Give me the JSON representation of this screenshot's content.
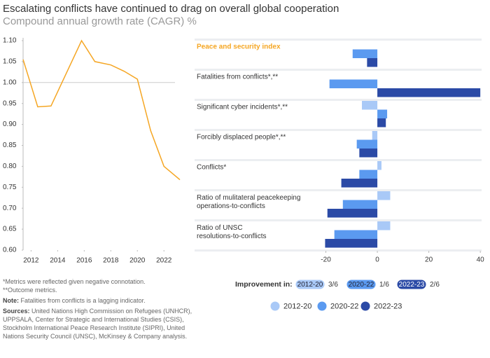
{
  "title": "Escalating conflicts have continued to drag on overall global cooperation",
  "subtitle": "Compound annual growth rate (CAGR) %",
  "chart_data": [
    {
      "type": "line",
      "color": "#f5a623",
      "x": [
        2011.4,
        2012.5,
        2013.5,
        2015.8,
        2016.8,
        2018,
        2019,
        2020,
        2021,
        2022,
        2023.2
      ],
      "values": [
        1.055,
        0.942,
        0.944,
        1.1,
        1.05,
        1.042,
        1.027,
        1.008,
        0.885,
        0.8,
        0.768
      ],
      "xlim": [
        2011.4,
        2023.2
      ],
      "xticks": [
        2012,
        2014,
        2016,
        2018,
        2020,
        2022
      ],
      "ylim": [
        0.6,
        1.1
      ],
      "yticks": [
        {
          "value": 0.6,
          "label": "0.60"
        },
        {
          "value": 0.65,
          "label": "0.65"
        },
        {
          "value": 0.7,
          "label": "0.70"
        },
        {
          "value": 0.75,
          "label": "0.75"
        },
        {
          "value": 0.8,
          "label": "0.80"
        },
        {
          "value": 0.85,
          "label": "0.85"
        },
        {
          "value": 0.9,
          "label": "0.90"
        },
        {
          "value": 0.95,
          "label": "0.95"
        },
        {
          "value": 1.0,
          "label": "1.00"
        },
        {
          "value": 1.05,
          "label": "1.05"
        },
        {
          "value": 1.1,
          "label": "1.10"
        }
      ],
      "reference_line": 1.0
    },
    {
      "type": "hbar",
      "categories": [
        "Peace and security index",
        "Fatalities from conflicts*,**",
        "Significant cyber incidents*,**",
        "Forcibly displaced people*,**",
        "Conflicts*",
        "Ratio of mulitateral peacekeeping operations-to-conflicts",
        "Ratio of UNSC resolutions-to-conflicts"
      ],
      "highlight_color": "#f5a623",
      "series": [
        {
          "name": "2012-20",
          "color": "#a9c9f7",
          "values": [
            0,
            0,
            -6,
            -2,
            1.6,
            5,
            5
          ]
        },
        {
          "name": "2020-22",
          "color": "#5b9af0",
          "values": [
            -9.6,
            -18.6,
            3.8,
            -8,
            -7,
            -13.4,
            -16.7
          ]
        },
        {
          "name": "2022-23",
          "color": "#2b4aa6",
          "values": [
            -4,
            40,
            3.3,
            -7,
            -14,
            -19.4,
            -20.3
          ]
        }
      ],
      "xlim": [
        -71,
        40.5
      ],
      "xticks": [
        -20,
        0,
        20,
        40
      ],
      "improvement": {
        "label": "Improvement in:",
        "scores": [
          "3/6",
          "1/6",
          "2/6"
        ]
      }
    }
  ],
  "notes": {
    "metrics": "*Metrics were reflected given negative connotation.",
    "outcome": "**Outcome metrics.",
    "note_label": "Note:",
    "note": "Fatalities from conflicts is a lagging indicator.",
    "sources_label": "Sources:",
    "sources": "United Nations High Commission on Refugees (UNHCR), UPPSALA, Center for Strategic and International Studies (CSIS), Stockholm International Peace Research Institute (SIPRI), United Nations Security Council (UNSC), McKinsey & Company analysis."
  }
}
